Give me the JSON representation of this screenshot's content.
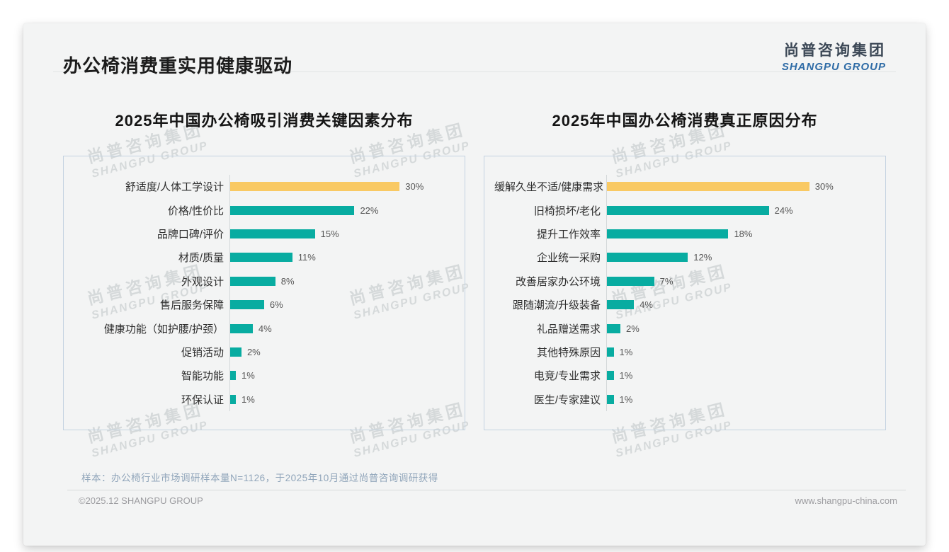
{
  "page": {
    "title": "办公椅消费重实用健康驱动",
    "logo": {
      "cn": "尚普咨询集团",
      "en": "SHANGPU GROUP"
    },
    "watermark": {
      "line1": "尚普咨询集团",
      "line2": "SHANGPU GROUP"
    },
    "footnote": "样本：办公椅行业市场调研样本量N=1126，于2025年10月通过尚普咨询调研获得",
    "footer": {
      "left": "©2025.12 SHANGPU GROUP",
      "right": "www.shangpu-china.com"
    }
  },
  "colors": {
    "teal": "#08aca1",
    "yellow": "#f9c963",
    "panel_border": "#c4d3e1",
    "card_background": "#f3f4f4"
  },
  "chart_data": [
    {
      "type": "bar",
      "orientation": "horizontal",
      "title": "2025年中国办公椅吸引消费关键因素分布",
      "categories": [
        "舒适度/人体工学设计",
        "价格/性价比",
        "品牌口碑/评价",
        "材质/质量",
        "外观设计",
        "售后服务保障",
        "健康功能（如护腰/护颈）",
        "促销活动",
        "智能功能",
        "环保认证"
      ],
      "values": [
        30,
        22,
        15,
        11,
        8,
        6,
        4,
        2,
        1,
        1
      ],
      "labels": [
        "30%",
        "22%",
        "15%",
        "11%",
        "8%",
        "6%",
        "4%",
        "2%",
        "1%",
        "1%"
      ],
      "unit": "%",
      "xlim": [
        0,
        40
      ],
      "grid": false,
      "legend": false,
      "highlight_index": 0,
      "highlight_color": "#f9c963",
      "bar_color": "#08aca1"
    },
    {
      "type": "bar",
      "orientation": "horizontal",
      "title": "2025年中国办公椅消费真正原因分布",
      "categories": [
        "缓解久坐不适/健康需求",
        "旧椅损坏/老化",
        "提升工作效率",
        "企业统一采购",
        "改善居家办公环境",
        "跟随潮流/升级装备",
        "礼品赠送需求",
        "其他特殊原因",
        "电竞/专业需求",
        "医生/专家建议"
      ],
      "values": [
        30,
        24,
        18,
        12,
        7,
        4,
        2,
        1,
        1,
        1
      ],
      "labels": [
        "30%",
        "24%",
        "18%",
        "12%",
        "7%",
        "4%",
        "2%",
        "1%",
        "1%",
        "1%"
      ],
      "unit": "%",
      "xlim": [
        0,
        40
      ],
      "grid": false,
      "legend": false,
      "highlight_index": 0,
      "highlight_color": "#f9c963",
      "bar_color": "#08aca1"
    }
  ]
}
